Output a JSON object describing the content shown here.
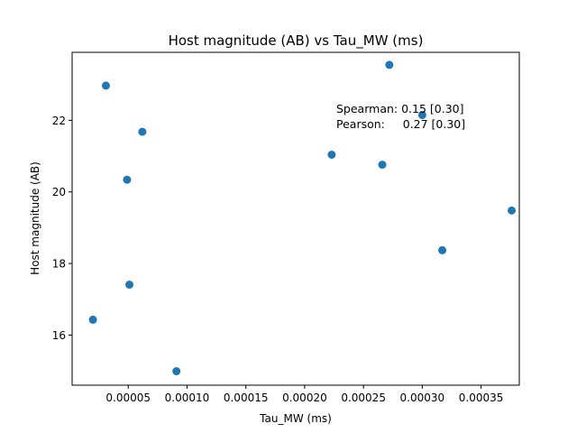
{
  "chart_data": {
    "type": "scatter",
    "title": "Host magnitude (AB) vs Tau_MW (ms)",
    "xlabel": "Tau_MW (ms)",
    "ylabel": "Host magnitude (AB)",
    "xlim": [
      2.3e-06,
      0.0003825
    ],
    "ylim": [
      14.6,
      23.9
    ],
    "xticks": [
      5e-05,
      0.0001,
      0.00015,
      0.0002,
      0.00025,
      0.0003,
      0.00035
    ],
    "xtick_labels": [
      "0.00005",
      "0.00010",
      "0.00015",
      "0.00020",
      "0.00025",
      "0.00030",
      "0.00035"
    ],
    "yticks": [
      16,
      18,
      20,
      22
    ],
    "ytick_labels": [
      "16",
      "18",
      "20",
      "22"
    ],
    "grid": false,
    "marker_color": "#1f77b4",
    "points": [
      {
        "x": 3.1e-05,
        "y": 22.97
      },
      {
        "x": 6.2e-05,
        "y": 21.68
      },
      {
        "x": 4.9e-05,
        "y": 20.34
      },
      {
        "x": 5.1e-05,
        "y": 17.41
      },
      {
        "x": 2e-05,
        "y": 16.43
      },
      {
        "x": 9.1e-05,
        "y": 14.99
      },
      {
        "x": 0.000223,
        "y": 21.04
      },
      {
        "x": 0.000266,
        "y": 20.76
      },
      {
        "x": 0.000272,
        "y": 23.55
      },
      {
        "x": 0.0003,
        "y": 22.15
      },
      {
        "x": 0.000317,
        "y": 18.37
      },
      {
        "x": 0.000376,
        "y": 19.48
      }
    ],
    "annotations": [
      "Spearman: 0.15 [0.30]",
      "Pearson:     0.27 [0.30]"
    ]
  }
}
